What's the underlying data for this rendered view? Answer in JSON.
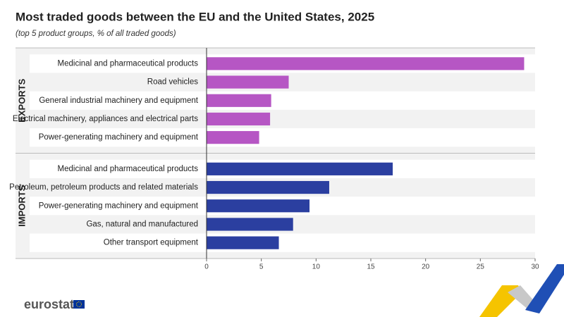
{
  "chart_data": {
    "type": "bar",
    "orientation": "horizontal",
    "title": "Most traded goods between the EU and the United States, 2025",
    "subtitle": "(top 5 product groups, % of all traded goods)",
    "groups": [
      {
        "name": "EXPORTS",
        "color": "#b656c4",
        "categories": [
          "Medicinal and pharmaceutical products",
          "Road vehicles",
          "General industrial machinery and equipment",
          "Electrical machinery, appliances and electrical parts",
          "Power-generating machinery and equipment"
        ],
        "values": [
          29.0,
          7.5,
          5.9,
          5.8,
          4.8
        ]
      },
      {
        "name": "IMPORTS",
        "color": "#2b3fa0",
        "categories": [
          "Medicinal and pharmaceutical products",
          "Petroleum, petroleum products and related materials",
          "Power-generating machinery and equipment",
          "Gas, natural and manufactured",
          "Other transport equipment"
        ],
        "values": [
          17.0,
          11.2,
          9.4,
          7.9,
          6.6
        ]
      }
    ],
    "xlim": [
      0,
      30
    ],
    "xticks": [
      0,
      5,
      10,
      15,
      20,
      25,
      30
    ],
    "grid": false
  },
  "logo": "eurostat"
}
